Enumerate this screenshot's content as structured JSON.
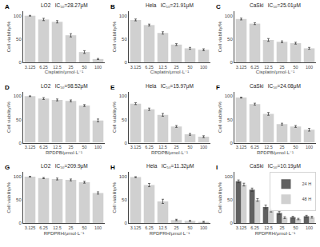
{
  "chart_data": [
    {
      "type": "bar",
      "title": "LO2   IC₅₀=28.27μM",
      "annotations": [
        {
          "text": "A"
        }
      ],
      "xlabel": "Cisplatin/μmol·L⁻¹",
      "ylabel": "Cell viability/%",
      "categories": [
        "3.125",
        "6.25",
        "12.5",
        "25",
        "50",
        "100"
      ],
      "series": [
        {
          "color": "#d0d0d0",
          "values": [
            100,
            92,
            87,
            58,
            22,
            7
          ],
          "errors": [
            0.8,
            2.5,
            2.5,
            3.5,
            3,
            1.2
          ]
        }
      ],
      "ylim": [
        0,
        110
      ],
      "yticks": [
        0,
        50,
        100
      ],
      "grid": false
    },
    {
      "type": "bar",
      "title": "Hela   IC₅₀=21.91μM",
      "annotations": [
        {
          "text": "B"
        }
      ],
      "xlabel": "Cisplatin/μmol·L⁻¹",
      "ylabel": "Cell viability/%",
      "categories": [
        "3.125",
        "6.25",
        "12.5",
        "25",
        "50",
        "100"
      ],
      "series": [
        {
          "color": "#d0d0d0",
          "values": [
            91,
            80,
            63,
            38,
            30,
            27
          ],
          "errors": [
            2,
            2,
            2.5,
            2,
            2,
            2
          ]
        }
      ],
      "ylim": [
        0,
        110
      ],
      "yticks": [
        0,
        50,
        100
      ],
      "grid": false
    },
    {
      "type": "bar",
      "title": "CaSki   IC₅₀=25.01μM",
      "annotations": [
        {
          "text": "C"
        }
      ],
      "xlabel": "Cisplatin/μmol·L⁻¹",
      "ylabel": "Cell viability/%",
      "categories": [
        "3.125",
        "6.25",
        "12.5",
        "25",
        "50",
        "100"
      ],
      "series": [
        {
          "color": "#d0d0d0",
          "values": [
            93,
            83,
            48,
            44,
            41,
            30
          ],
          "errors": [
            2,
            2,
            3,
            2,
            2,
            2
          ]
        }
      ],
      "ylim": [
        0,
        110
      ],
      "yticks": [
        0,
        50,
        100
      ],
      "grid": false
    },
    {
      "type": "bar",
      "title": "LO2   IC₅₀=98.52μM",
      "annotations": [
        {
          "text": "D"
        }
      ],
      "xlabel": "RPDPB/μmol·L⁻¹",
      "ylabel": "Cell viability/%",
      "categories": [
        "3.125",
        "6.25",
        "12.5",
        "25",
        "50",
        "100"
      ],
      "series": [
        {
          "color": "#d0d0d0",
          "values": [
            100,
            95,
            92,
            90,
            80,
            48
          ],
          "errors": [
            0.8,
            2,
            2,
            2,
            2,
            3
          ]
        }
      ],
      "ylim": [
        0,
        110
      ],
      "yticks": [
        0,
        50,
        100
      ],
      "grid": false
    },
    {
      "type": "bar",
      "title": "Hela   IC₅₀=15.97μM",
      "annotations": [
        {
          "text": "E"
        }
      ],
      "xlabel": "RPDPB/μmol·L⁻¹",
      "ylabel": "Cell viability/%",
      "categories": [
        "3.125",
        "6.25",
        "12.5",
        "25",
        "50",
        "100"
      ],
      "series": [
        {
          "color": "#d0d0d0",
          "values": [
            84,
            72,
            60,
            35,
            18,
            13
          ],
          "errors": [
            2,
            2.5,
            3,
            2,
            2,
            2
          ]
        }
      ],
      "ylim": [
        0,
        110
      ],
      "yticks": [
        0,
        50,
        100
      ],
      "grid": false
    },
    {
      "type": "bar",
      "title": "CaSki   IC₅₀=24.08μM",
      "annotations": [
        {
          "text": "F"
        }
      ],
      "xlabel": "RPDPB/μmol·L⁻¹",
      "ylabel": "Cell viability/%",
      "categories": [
        "3.125",
        "6.25",
        "12.5",
        "25",
        "50",
        "100"
      ],
      "series": [
        {
          "color": "#d0d0d0",
          "values": [
            97,
            83,
            62,
            40,
            35,
            28
          ],
          "errors": [
            1,
            2,
            3,
            2,
            2,
            3
          ]
        }
      ],
      "ylim": [
        0,
        110
      ],
      "yticks": [
        0,
        50,
        100
      ],
      "grid": false
    },
    {
      "type": "bar",
      "title": "LO2   IC₅₀=209.9μM",
      "annotations": [
        {
          "text": "G"
        }
      ],
      "xlabel": "RPDPRH/μmol·L⁻¹",
      "ylabel": "Cell viability/%",
      "categories": [
        "3.125",
        "6.25",
        "12.5",
        "25",
        "50",
        "100"
      ],
      "series": [
        {
          "color": "#d0d0d0",
          "values": [
            100,
            97,
            95,
            93,
            88,
            65
          ],
          "errors": [
            0.8,
            1.2,
            2,
            2,
            2,
            2.5
          ]
        }
      ],
      "ylim": [
        0,
        110
      ],
      "yticks": [
        0,
        50,
        100
      ],
      "grid": false
    },
    {
      "type": "bar",
      "title": "Hela   IC₅₀=11.32μM",
      "annotations": [
        {
          "text": "H"
        }
      ],
      "xlabel": "RPDPRH/μmol·L⁻¹",
      "ylabel": "Cell viability/%",
      "categories": [
        "3.125",
        "6.25",
        "12.5",
        "25",
        "50",
        "100"
      ],
      "series": [
        {
          "color": "#d0d0d0",
          "values": [
            99,
            82,
            47,
            7,
            5,
            3
          ],
          "errors": [
            1,
            3.5,
            4.5,
            1.5,
            1,
            1
          ]
        }
      ],
      "ylim": [
        0,
        110
      ],
      "yticks": [
        0,
        50,
        100
      ],
      "grid": false
    },
    {
      "type": "bar",
      "title": "CaSki   IC₅₀=10.19μM",
      "annotations": [
        {
          "text": "I"
        }
      ],
      "xlabel": "RPDPRH/μmol·L⁻¹",
      "ylabel": "Cell viability/%",
      "categories": [
        "3.125",
        "6.25",
        "12.5",
        "25",
        "50",
        "100"
      ],
      "series": [
        {
          "name": "24 H",
          "color": "#606060",
          "values": [
            90,
            72,
            35,
            22,
            13,
            15
          ],
          "errors": [
            3,
            3.5,
            4,
            3,
            2,
            2
          ]
        },
        {
          "name": "48 H",
          "color": "#d0d0d0",
          "values": [
            83,
            50,
            27,
            12,
            9,
            13
          ],
          "errors": [
            3,
            3,
            3,
            2,
            1.5,
            2
          ]
        }
      ],
      "legend": "upper right",
      "ylim": [
        0,
        110
      ],
      "yticks": [
        0,
        50,
        100
      ],
      "grid": false
    }
  ]
}
